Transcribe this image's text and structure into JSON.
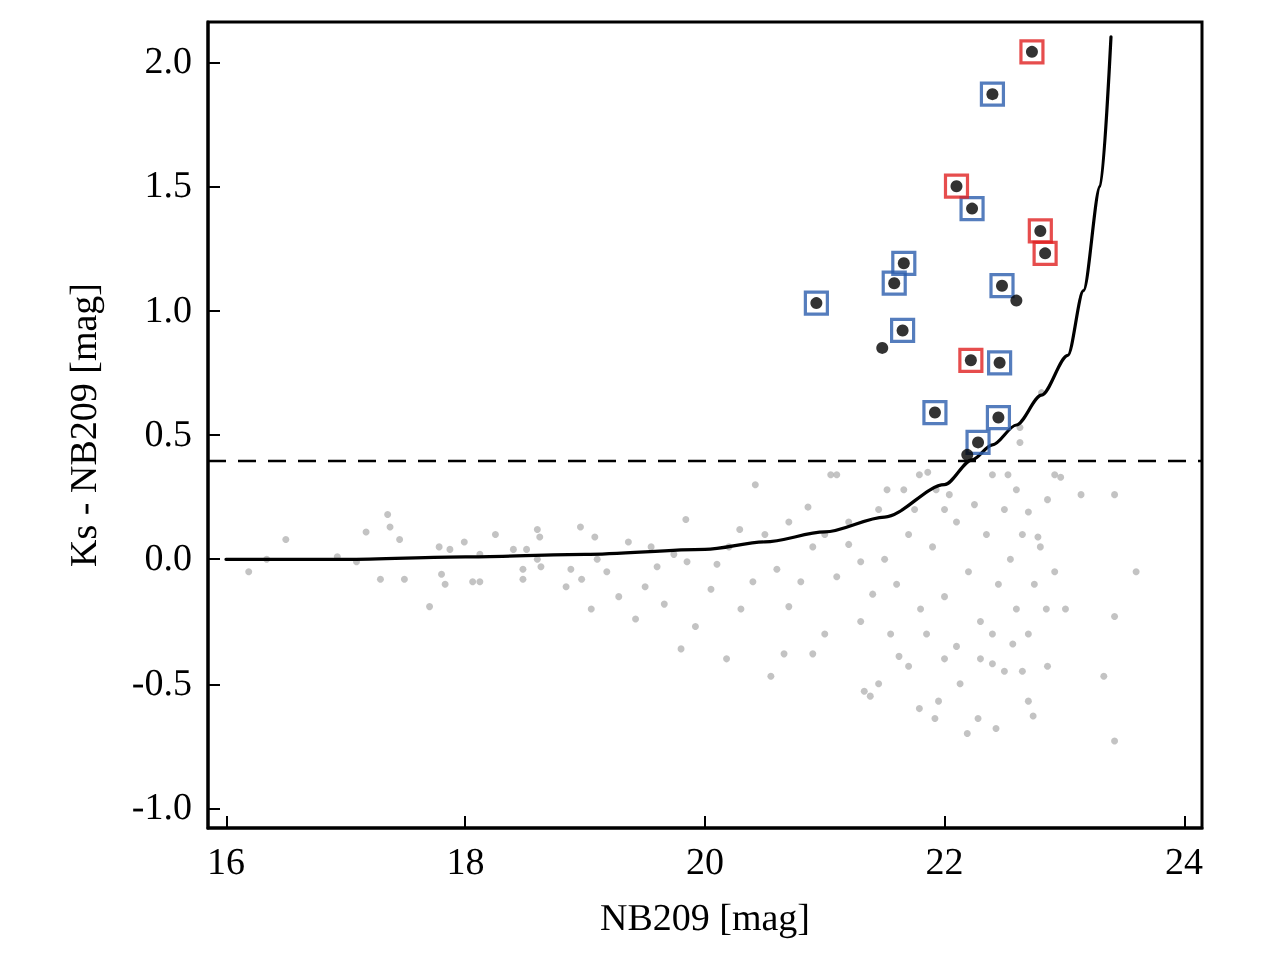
{
  "chart_data": {
    "type": "scatter",
    "xlabel": "NB209 [mag]",
    "ylabel": "Ks - NB209 [mag]",
    "xlim": [
      15.85,
      24.15
    ],
    "ylim": [
      -1.08,
      2.16
    ],
    "xticks": [
      16,
      18,
      20,
      22,
      24
    ],
    "yticks": [
      {
        "value": -1,
        "label": "-1.0"
      },
      {
        "value": -0.5,
        "label": "-0.5"
      },
      {
        "value": 0,
        "label": "0.0"
      },
      {
        "value": 0.5,
        "label": "0.5"
      },
      {
        "value": 1,
        "label": "1.0"
      },
      {
        "value": 1.5,
        "label": "1.5"
      },
      {
        "value": 2,
        "label": "2.0"
      }
    ],
    "grid": false,
    "ref_lines": [
      {
        "axis": "y",
        "value": 0.4,
        "color": "#000000",
        "line_style": "dashed"
      }
    ],
    "series": [
      {
        "marker": "circle",
        "color": "#b4b4b4",
        "x": [
          16.19,
          16.34,
          16.5,
          16.93,
          17.09,
          17.17,
          17.35,
          17.37,
          17.29,
          17.45,
          17.49,
          17.7,
          17.78,
          17.8,
          17.83,
          17.87,
          17.99,
          18.06,
          18.12,
          18.12,
          18.25,
          18.4,
          18.48,
          18.48,
          18.51,
          18.6,
          18.62,
          18.6,
          18.63,
          18.84,
          18.96,
          18.88,
          18.97,
          19.05,
          19.08,
          19.1,
          19.18,
          19.28,
          19.36,
          19.42,
          19.5,
          19.55,
          19.6,
          19.66,
          19.84,
          19.8,
          19.92,
          19.85,
          19.74,
          20.18,
          20.29,
          20.42,
          20.55,
          20.66,
          20.86,
          20.9,
          21.0,
          21.05,
          20.1,
          20.05,
          20.4,
          20.6,
          20.8,
          20.7,
          21.1,
          21.2,
          21.3,
          21.4,
          21.33,
          21.38,
          21.45,
          21.52,
          21.66,
          21.62,
          21.7,
          21.79,
          21.79,
          21.92,
          21.95,
          21.93,
          22.04,
          22.13,
          22.19,
          22.28,
          22.43,
          22.4,
          22.53,
          22.4,
          22.57,
          22.7,
          22.74,
          22.7,
          22.78,
          22.86,
          22.92,
          22.86,
          23.01,
          22.92,
          23.14,
          23.33,
          23.42,
          23.42,
          23.42,
          23.6,
          21.5,
          21.6,
          21.7,
          21.8,
          21.9,
          22.0,
          22.1,
          22.2,
          22.3,
          22.35,
          22.45,
          22.5,
          22.55,
          22.6,
          22.65,
          22.7,
          22.75,
          22.8,
          22.85,
          21.2,
          21.3,
          21.45,
          21.55,
          21.75,
          21.85,
          22.0,
          22.25,
          22.4,
          22.6,
          20.5,
          20.7,
          20.9,
          20.2,
          20.3,
          21.0,
          22.1,
          22.3,
          22.5,
          22.0,
          22.65,
          22.81,
          22.63,
          22.63,
          22.97,
          21.86,
          21.1
        ],
        "values": [
          -0.05,
          0.0,
          0.08,
          0.01,
          -0.01,
          0.11,
          0.18,
          0.13,
          -0.08,
          0.08,
          -0.08,
          -0.19,
          0.05,
          -0.06,
          -0.1,
          0.04,
          0.07,
          -0.09,
          -0.09,
          0.02,
          0.1,
          0.04,
          -0.08,
          -0.04,
          0.04,
          0.12,
          0.09,
          0.0,
          -0.03,
          -0.11,
          0.13,
          -0.04,
          -0.08,
          -0.2,
          0.09,
          0.0,
          -0.05,
          -0.15,
          0.07,
          -0.24,
          -0.11,
          0.05,
          -0.03,
          -0.18,
          0.16,
          -0.36,
          -0.27,
          -0.01,
          0.02,
          -0.4,
          0.12,
          0.3,
          -0.47,
          -0.38,
          0.21,
          -0.38,
          -0.3,
          0.34,
          -0.02,
          -0.12,
          -0.09,
          -0.04,
          -0.09,
          -0.19,
          -0.07,
          0.06,
          -0.01,
          -0.14,
          -0.53,
          -0.55,
          -0.5,
          0.28,
          0.28,
          -0.39,
          -0.43,
          -0.6,
          0.34,
          -0.64,
          -0.57,
          0.28,
          0.26,
          -0.5,
          -0.7,
          -0.64,
          -0.68,
          0.34,
          0.34,
          -0.42,
          -0.34,
          -0.57,
          -0.63,
          0.19,
          0.09,
          0.24,
          0.34,
          -0.43,
          -0.2,
          -0.05,
          0.26,
          -0.47,
          0.26,
          -0.73,
          -0.23,
          -0.05,
          0.0,
          -0.1,
          0.1,
          -0.2,
          0.05,
          -0.15,
          0.15,
          -0.05,
          -0.25,
          0.1,
          -0.1,
          0.2,
          0.0,
          -0.2,
          0.1,
          -0.3,
          -0.1,
          0.05,
          -0.2,
          0.15,
          -0.25,
          0.2,
          -0.3,
          0.2,
          -0.3,
          0.2,
          0.22,
          -0.3,
          0.28,
          0.1,
          0.15,
          0.05,
          0.05,
          -0.2,
          0.1,
          -0.35,
          -0.4,
          -0.45,
          -0.4,
          -0.45,
          0.67,
          0.53,
          0.47,
          0.33,
          0.35,
          0.34
        ]
      },
      {
        "type": "line",
        "marker": "none",
        "color": "#000000",
        "line_style": "solid",
        "x": [
          16.0,
          17.0,
          18.0,
          19.0,
          20.0,
          20.5,
          21.0,
          21.5,
          22.0,
          22.23,
          22.4,
          22.6,
          22.81,
          23.03,
          23.16,
          23.3,
          23.39
        ],
        "values": [
          0.0,
          0.0,
          0.01,
          0.02,
          0.04,
          0.07,
          0.11,
          0.17,
          0.3,
          0.4,
          0.46,
          0.54,
          0.66,
          0.82,
          1.08,
          1.5,
          2.1
        ]
      },
      {
        "marker": "circle",
        "color": "#000000",
        "x": [
          22.73,
          22.1,
          22.8,
          22.84,
          22.22,
          22.4,
          22.23,
          21.66,
          21.58,
          22.48,
          20.93,
          21.65,
          22.46,
          21.92,
          22.45,
          22.28,
          22.6,
          21.48,
          22.19
        ],
        "values": [
          2.04,
          1.5,
          1.32,
          1.23,
          0.8,
          1.87,
          1.41,
          1.19,
          1.11,
          1.1,
          1.03,
          0.92,
          0.79,
          0.59,
          0.57,
          0.47,
          1.04,
          0.85,
          0.42
        ]
      },
      {
        "marker": "square",
        "color": "#2a5cad",
        "x": [
          22.4,
          22.23,
          21.66,
          21.58,
          22.48,
          20.93,
          21.65,
          22.46,
          21.92,
          22.45,
          22.28
        ],
        "values": [
          1.87,
          1.41,
          1.19,
          1.11,
          1.1,
          1.03,
          0.92,
          0.79,
          0.59,
          0.57,
          0.47
        ]
      },
      {
        "marker": "square",
        "color": "#e02020",
        "x": [
          22.73,
          22.1,
          22.8,
          22.84,
          22.22
        ],
        "values": [
          2.04,
          1.5,
          1.32,
          1.23,
          0.8
        ]
      }
    ]
  }
}
